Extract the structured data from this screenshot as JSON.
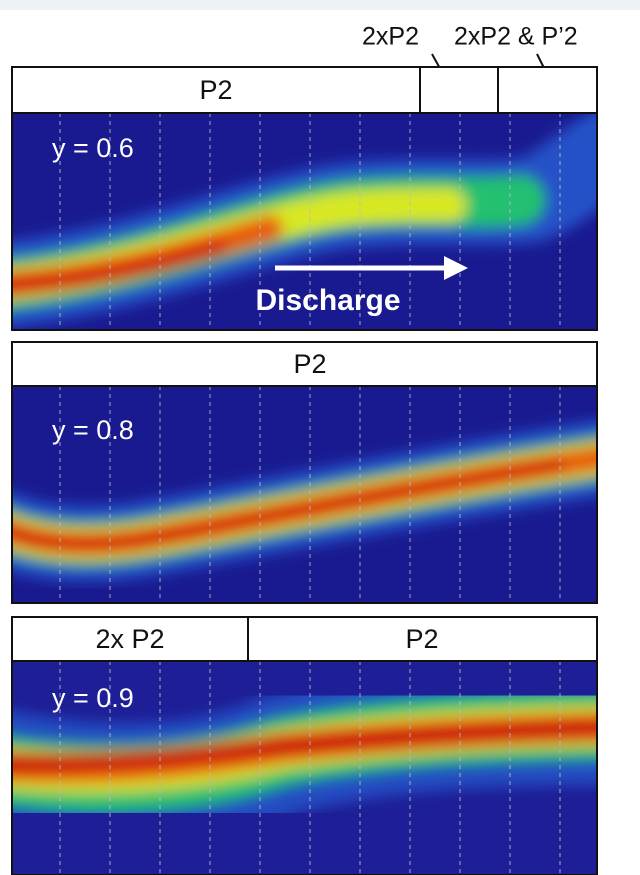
{
  "annotations": [
    "2xP2",
    "2xP2 & P’2"
  ],
  "panels": [
    {
      "segments": [
        "P2"
      ],
      "label": "y = 0.6",
      "arrow_label": "Discharge"
    },
    {
      "segments": [
        "P2"
      ],
      "label": "y = 0.8"
    },
    {
      "segments": [
        "2x P2",
        "P2"
      ],
      "label": "y = 0.9"
    }
  ]
}
